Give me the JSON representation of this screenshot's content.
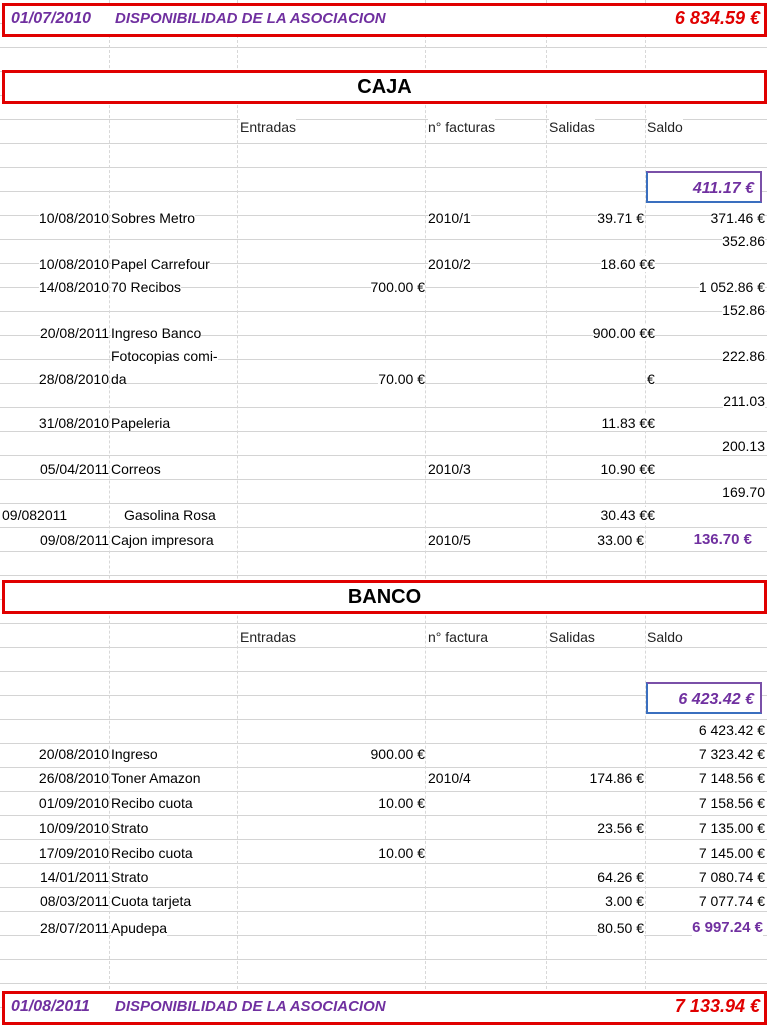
{
  "top_disponibilidad": {
    "date": "01/07/2010",
    "label": "DISPONIBILIDAD DE LA ASOCIACION",
    "amount": "6 834.59 €"
  },
  "caja": {
    "title": "CAJA",
    "headers": {
      "entradas": "Entradas",
      "facturas": "n° facturas",
      "salidas": "Salidas",
      "saldo": "Saldo"
    },
    "start_balance": "411.17 €",
    "rows": [
      {
        "date": "10/08/2010",
        "concept": "Sobres Metro",
        "entradas": "",
        "factura": "2010/1",
        "salidas": "39.71 €",
        "saldo": "371.46 €"
      },
      {
        "date": "10/08/2010",
        "concept": "Papel Carrefour",
        "entradas": "",
        "factura": "2010/2",
        "salidas": "18.60 €€",
        "saldo": "352.86"
      },
      {
        "date": "14/08/2010",
        "concept": "70 Recibos",
        "entradas": "700.00 €",
        "factura": "",
        "salidas": "",
        "saldo": "1 052.86 €"
      },
      {
        "date": "20/08/2011",
        "concept": "Ingreso Banco",
        "entradas": "",
        "factura": "",
        "salidas": "900.00 €€",
        "saldo": "152.86"
      },
      {
        "date": "28/08/2010",
        "concept_line1": "Fotocopias comi-",
        "concept_line2": "da",
        "entradas": "70.00 €",
        "factura": "",
        "salidas": "€",
        "saldo": "222.86"
      },
      {
        "date": "31/08/2010",
        "concept": "Papeleria",
        "entradas": "",
        "factura": "",
        "salidas": "11.83 €€",
        "saldo": "211.03"
      },
      {
        "date": "05/04/2011",
        "concept": "Correos",
        "entradas": "",
        "factura": "2010/3",
        "salidas": "10.90 €€",
        "saldo": "200.13"
      },
      {
        "date": "09/082011",
        "concept": "Gasolina Rosa",
        "entradas": "",
        "factura": "",
        "salidas": "30.43 €€",
        "saldo": "169.70"
      },
      {
        "date": "09/08/2011",
        "concept": "Cajon impresora",
        "entradas": "",
        "factura": "2010/5",
        "salidas": "33.00 €",
        "saldo": "136.70 €"
      }
    ]
  },
  "banco": {
    "title": "BANCO",
    "headers": {
      "entradas": "Entradas",
      "factura": "n° factura",
      "salidas": "Salidas",
      "saldo": "Saldo"
    },
    "start_balance": "6 423.42 €",
    "first_saldo": "6 423.42 €",
    "rows": [
      {
        "date": "20/08/2010",
        "concept": "Ingreso",
        "entradas": "900.00 €",
        "factura": "",
        "salidas": "",
        "saldo": "7 323.42 €"
      },
      {
        "date": "26/08/2010",
        "concept": "Toner Amazon",
        "entradas": "",
        "factura": "2010/4",
        "salidas": "174.86 €",
        "saldo": "7 148.56 €"
      },
      {
        "date": "01/09/2010",
        "concept": "Recibo cuota",
        "entradas": "10.00 €",
        "factura": "",
        "salidas": "",
        "saldo": "7 158.56 €"
      },
      {
        "date": "10/09/2010",
        "concept": "Strato",
        "entradas": "",
        "factura": "",
        "salidas": "23.56 €",
        "saldo": "7 135.00 €"
      },
      {
        "date": "17/09/2010",
        "concept": "Recibo cuota",
        "entradas": "10.00 €",
        "factura": "",
        "salidas": "",
        "saldo": "7 145.00 €"
      },
      {
        "date": "14/01/2011",
        "concept": "Strato",
        "entradas": "",
        "factura": "",
        "salidas": "64.26 €",
        "saldo": "7 080.74 €"
      },
      {
        "date": "08/03/2011",
        "concept": "Cuota tarjeta",
        "entradas": "",
        "factura": "",
        "salidas": "3.00 €",
        "saldo": "7 077.74 €"
      },
      {
        "date": "28/07/2011",
        "concept": "Apudepa",
        "entradas": "",
        "factura": "",
        "salidas": "80.50 €",
        "saldo": "6 997.24 €"
      }
    ]
  },
  "bottom_disponibilidad": {
    "date": "01/08/2011",
    "label": "DISPONIBILIDAD DE LA ASOCIACION",
    "amount": "7 133.94 €"
  }
}
